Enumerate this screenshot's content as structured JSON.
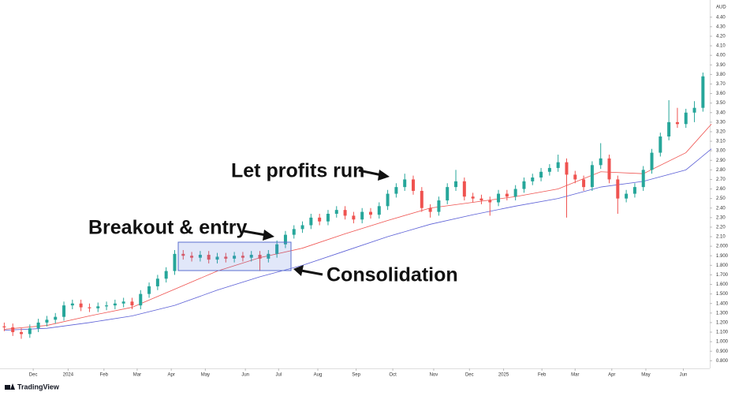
{
  "chart_data": {
    "type": "candlestick",
    "currency": "AUD",
    "watermark": "TradingView",
    "annotations": [
      "Let profits run",
      "Breakout & entry",
      "Consolidation"
    ],
    "up_color": "#26a69a",
    "down_color": "#ef5350",
    "candles": [
      [
        1.16,
        1.2,
        1.11,
        1.15
      ],
      [
        1.15,
        1.19,
        1.06,
        1.1
      ],
      [
        1.1,
        1.14,
        1.03,
        1.08
      ],
      [
        1.08,
        1.18,
        1.04,
        1.14
      ],
      [
        1.14,
        1.24,
        1.1,
        1.2
      ],
      [
        1.2,
        1.27,
        1.16,
        1.23
      ],
      [
        1.23,
        1.3,
        1.19,
        1.26
      ],
      [
        1.26,
        1.42,
        1.22,
        1.38
      ],
      [
        1.38,
        1.44,
        1.34,
        1.4
      ],
      [
        1.4,
        1.44,
        1.32,
        1.36
      ],
      [
        1.36,
        1.4,
        1.31,
        1.35
      ],
      [
        1.35,
        1.41,
        1.31,
        1.37
      ],
      [
        1.37,
        1.42,
        1.33,
        1.38
      ],
      [
        1.38,
        1.44,
        1.34,
        1.4
      ],
      [
        1.4,
        1.46,
        1.36,
        1.42
      ],
      [
        1.42,
        1.46,
        1.34,
        1.38
      ],
      [
        1.38,
        1.54,
        1.34,
        1.5
      ],
      [
        1.5,
        1.62,
        1.46,
        1.58
      ],
      [
        1.58,
        1.7,
        1.54,
        1.66
      ],
      [
        1.66,
        1.78,
        1.62,
        1.74
      ],
      [
        1.74,
        1.96,
        1.7,
        1.92
      ],
      [
        1.92,
        1.96,
        1.86,
        1.9
      ],
      [
        1.9,
        1.94,
        1.84,
        1.88
      ],
      [
        1.88,
        1.95,
        1.84,
        1.91
      ],
      [
        1.91,
        1.95,
        1.82,
        1.86
      ],
      [
        1.86,
        1.93,
        1.82,
        1.89
      ],
      [
        1.89,
        1.93,
        1.83,
        1.87
      ],
      [
        1.87,
        1.94,
        1.83,
        1.9
      ],
      [
        1.9,
        1.94,
        1.84,
        1.88
      ],
      [
        1.88,
        1.95,
        1.84,
        1.91
      ],
      [
        1.91,
        1.95,
        1.74,
        1.87
      ],
      [
        1.87,
        1.96,
        1.83,
        1.92
      ],
      [
        1.92,
        2.06,
        1.88,
        2.02
      ],
      [
        2.02,
        2.16,
        1.98,
        2.12
      ],
      [
        2.12,
        2.22,
        2.08,
        2.18
      ],
      [
        2.18,
        2.26,
        2.14,
        2.22
      ],
      [
        2.22,
        2.34,
        2.18,
        2.3
      ],
      [
        2.3,
        2.34,
        2.22,
        2.26
      ],
      [
        2.26,
        2.38,
        2.22,
        2.34
      ],
      [
        2.34,
        2.42,
        2.3,
        2.38
      ],
      [
        2.38,
        2.42,
        2.28,
        2.32
      ],
      [
        2.32,
        2.36,
        2.24,
        2.28
      ],
      [
        2.28,
        2.4,
        2.24,
        2.36
      ],
      [
        2.36,
        2.4,
        2.29,
        2.33
      ],
      [
        2.33,
        2.46,
        2.29,
        2.42
      ],
      [
        2.42,
        2.59,
        2.38,
        2.55
      ],
      [
        2.55,
        2.66,
        2.51,
        2.62
      ],
      [
        2.62,
        2.76,
        2.58,
        2.7
      ],
      [
        2.7,
        2.74,
        2.54,
        2.58
      ],
      [
        2.58,
        2.62,
        2.36,
        2.4
      ],
      [
        2.4,
        2.44,
        2.3,
        2.36
      ],
      [
        2.36,
        2.52,
        2.32,
        2.48
      ],
      [
        2.48,
        2.66,
        2.44,
        2.62
      ],
      [
        2.62,
        2.8,
        2.58,
        2.68
      ],
      [
        2.68,
        2.72,
        2.48,
        2.52
      ],
      [
        2.52,
        2.56,
        2.46,
        2.5
      ],
      [
        2.5,
        2.54,
        2.44,
        2.48
      ],
      [
        2.48,
        2.52,
        2.32,
        2.46
      ],
      [
        2.46,
        2.59,
        2.42,
        2.55
      ],
      [
        2.55,
        2.59,
        2.48,
        2.52
      ],
      [
        2.52,
        2.64,
        2.48,
        2.6
      ],
      [
        2.6,
        2.72,
        2.56,
        2.68
      ],
      [
        2.68,
        2.76,
        2.64,
        2.72
      ],
      [
        2.72,
        2.82,
        2.68,
        2.78
      ],
      [
        2.78,
        2.86,
        2.74,
        2.82
      ],
      [
        2.82,
        2.96,
        2.78,
        2.88
      ],
      [
        2.88,
        2.92,
        2.3,
        2.75
      ],
      [
        2.75,
        2.79,
        2.66,
        2.7
      ],
      [
        2.7,
        2.74,
        2.58,
        2.62
      ],
      [
        2.62,
        2.89,
        2.58,
        2.85
      ],
      [
        2.85,
        3.08,
        2.81,
        2.92
      ],
      [
        2.92,
        2.96,
        2.66,
        2.7
      ],
      [
        2.7,
        2.74,
        2.34,
        2.5
      ],
      [
        2.5,
        2.59,
        2.46,
        2.55
      ],
      [
        2.55,
        2.66,
        2.51,
        2.62
      ],
      [
        2.62,
        2.84,
        2.58,
        2.8
      ],
      [
        2.8,
        3.02,
        2.76,
        2.98
      ],
      [
        2.98,
        3.19,
        2.94,
        3.15
      ],
      [
        3.15,
        3.53,
        3.11,
        3.3
      ],
      [
        3.3,
        3.45,
        3.24,
        3.28
      ],
      [
        3.28,
        3.44,
        3.24,
        3.4
      ],
      [
        3.4,
        3.52,
        3.3,
        3.45
      ],
      [
        3.45,
        3.82,
        3.41,
        3.78
      ]
    ],
    "series": [
      {
        "color": "#ef5350",
        "x": [
          0,
          5,
          10,
          15,
          20,
          25,
          30,
          35,
          40,
          45,
          50,
          55,
          60,
          65,
          70,
          75,
          80,
          83
        ],
        "values": [
          1.13,
          1.17,
          1.27,
          1.36,
          1.55,
          1.74,
          1.88,
          1.98,
          2.13,
          2.27,
          2.4,
          2.46,
          2.52,
          2.6,
          2.78,
          2.76,
          2.98,
          3.28
        ]
      },
      {
        "color": "#5b5fd6",
        "x": [
          0,
          5,
          10,
          15,
          20,
          25,
          30,
          35,
          40,
          45,
          50,
          55,
          60,
          65,
          70,
          75,
          80,
          83
        ],
        "values": [
          1.12,
          1.14,
          1.2,
          1.27,
          1.38,
          1.54,
          1.68,
          1.8,
          1.95,
          2.1,
          2.23,
          2.33,
          2.42,
          2.5,
          2.62,
          2.68,
          2.8,
          3.02
        ]
      }
    ],
    "xlim": [
      -0.5,
      82.8
    ],
    "xticks": [
      {
        "value": 3.4,
        "label": "Dec"
      },
      {
        "value": 7.5,
        "label": "2024"
      },
      {
        "value": 11.7,
        "label": "Feb"
      },
      {
        "value": 15.6,
        "label": "Mar"
      },
      {
        "value": 19.6,
        "label": "Apr"
      },
      {
        "value": 23.6,
        "label": "May"
      },
      {
        "value": 28.3,
        "label": "Jun"
      },
      {
        "value": 32.2,
        "label": "Jul"
      },
      {
        "value": 36.8,
        "label": "Aug"
      },
      {
        "value": 41.3,
        "label": "Sep"
      },
      {
        "value": 45.6,
        "label": "Oct"
      },
      {
        "value": 50.4,
        "label": "Nov"
      },
      {
        "value": 54.6,
        "label": "Dec"
      },
      {
        "value": 58.6,
        "label": "2025"
      },
      {
        "value": 63.1,
        "label": "Feb"
      },
      {
        "value": 67.0,
        "label": "Mar"
      },
      {
        "value": 71.3,
        "label": "Apr"
      },
      {
        "value": 75.3,
        "label": "May"
      },
      {
        "value": 79.7,
        "label": "Jun"
      }
    ],
    "ylim": [
      0.72,
      4.58
    ],
    "yticks": [
      {
        "value": 4.4,
        "label": "4.40"
      },
      {
        "value": 4.3,
        "label": "4.30"
      },
      {
        "value": 4.2,
        "label": "4.20"
      },
      {
        "value": 4.1,
        "label": "4.10"
      },
      {
        "value": 4.0,
        "label": "4.00"
      },
      {
        "value": 3.9,
        "label": "3.90"
      },
      {
        "value": 3.8,
        "label": "3.80"
      },
      {
        "value": 3.7,
        "label": "3.70"
      },
      {
        "value": 3.6,
        "label": "3.60"
      },
      {
        "value": 3.5,
        "label": "3.50"
      },
      {
        "value": 3.4,
        "label": "3.40"
      },
      {
        "value": 3.3,
        "label": "3.30"
      },
      {
        "value": 3.2,
        "label": "3.20"
      },
      {
        "value": 3.1,
        "label": "3.10"
      },
      {
        "value": 3.0,
        "label": "3.00"
      },
      {
        "value": 2.9,
        "label": "2.90"
      },
      {
        "value": 2.8,
        "label": "2.80"
      },
      {
        "value": 2.7,
        "label": "2.70"
      },
      {
        "value": 2.6,
        "label": "2.60"
      },
      {
        "value": 2.5,
        "label": "2.50"
      },
      {
        "value": 2.4,
        "label": "2.40"
      },
      {
        "value": 2.3,
        "label": "2.30"
      },
      {
        "value": 2.2,
        "label": "2.20"
      },
      {
        "value": 2.1,
        "label": "2.10"
      },
      {
        "value": 2.0,
        "label": "2.000"
      },
      {
        "value": 1.9,
        "label": "1.900"
      },
      {
        "value": 1.8,
        "label": "1.800"
      },
      {
        "value": 1.7,
        "label": "1.700"
      },
      {
        "value": 1.6,
        "label": "1.600"
      },
      {
        "value": 1.5,
        "label": "1.500"
      },
      {
        "value": 1.4,
        "label": "1.400"
      },
      {
        "value": 1.3,
        "label": "1.300"
      },
      {
        "value": 1.2,
        "label": "1.200"
      },
      {
        "value": 1.1,
        "label": "1.100"
      },
      {
        "value": 1.0,
        "label": "1.000"
      },
      {
        "value": 0.9,
        "label": "0.900"
      },
      {
        "value": 0.8,
        "label": "0.800"
      }
    ]
  }
}
